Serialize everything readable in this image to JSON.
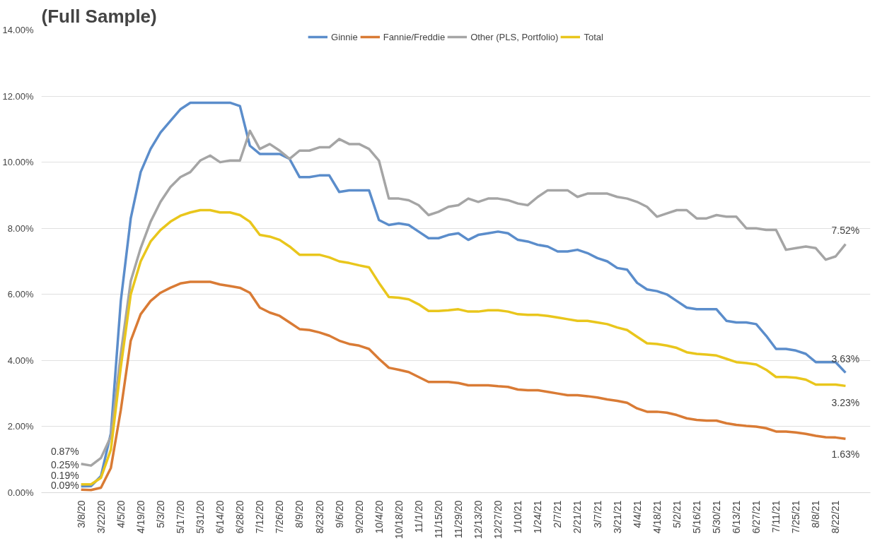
{
  "chart_data": {
    "type": "line",
    "title": "(Full Sample)",
    "categories": [
      "3/8/20",
      null,
      "3/22/20",
      null,
      "4/5/20",
      null,
      "4/19/20",
      null,
      "5/3/20",
      null,
      "5/17/20",
      null,
      "5/31/20",
      null,
      "6/14/20",
      null,
      "6/28/20",
      null,
      "7/12/20",
      null,
      "7/26/20",
      null,
      "8/9/20",
      null,
      "8/23/20",
      null,
      "9/6/20",
      null,
      "9/20/20",
      null,
      "10/4/20",
      null,
      "10/18/20",
      null,
      "11/1/20",
      null,
      "11/15/20",
      null,
      "11/29/20",
      null,
      "12/13/20",
      null,
      "12/27/20",
      null,
      "1/10/21",
      null,
      "1/24/21",
      null,
      "2/7/21",
      null,
      "2/21/21",
      null,
      "3/7/21",
      null,
      "3/21/21",
      null,
      "4/4/21",
      null,
      "4/18/21",
      null,
      "5/2/21",
      null,
      "5/16/21",
      null,
      "5/30/21",
      null,
      "6/13/21",
      null,
      "6/27/21",
      null,
      "7/11/21",
      null,
      "7/25/21",
      null,
      "8/8/21",
      null,
      "8/22/21",
      null
    ],
    "series": [
      {
        "name": "Ginnie",
        "color": "#5b8dcb",
        "values": [
          0.19,
          0.2,
          0.5,
          1.8,
          5.8,
          8.3,
          9.7,
          10.4,
          10.9,
          11.25,
          11.6,
          11.8,
          11.8,
          11.8,
          11.8,
          11.8,
          11.7,
          10.5,
          10.25,
          10.25,
          10.25,
          10.1,
          9.55,
          9.55,
          9.6,
          9.6,
          9.1,
          9.15,
          9.15,
          9.15,
          8.25,
          8.1,
          8.15,
          8.1,
          7.9,
          7.7,
          7.7,
          7.8,
          7.85,
          7.65,
          7.8,
          7.85,
          7.9,
          7.85,
          7.65,
          7.6,
          7.5,
          7.45,
          7.3,
          7.3,
          7.35,
          7.25,
          7.1,
          7.0,
          6.8,
          6.75,
          6.35,
          6.15,
          6.1,
          6.0,
          5.8,
          5.6,
          5.55,
          5.55,
          5.55,
          5.2,
          5.15,
          5.15,
          5.1,
          4.75,
          4.35,
          4.35,
          4.3,
          4.2,
          3.95,
          3.95,
          3.95,
          3.63
        ],
        "value_labels": [
          "0.19%",
          null,
          null,
          null,
          null,
          null,
          null,
          null,
          null,
          null,
          null,
          null,
          null,
          null,
          null,
          null,
          null,
          null,
          null,
          null,
          null,
          null,
          null,
          null,
          null,
          null,
          null,
          null,
          null,
          null,
          null,
          null,
          null,
          null,
          null,
          null,
          null,
          null,
          null,
          null,
          null,
          null,
          null,
          null,
          null,
          null,
          null,
          null,
          null,
          null,
          null,
          null,
          null,
          null,
          null,
          null,
          null,
          null,
          null,
          null,
          null,
          null,
          null,
          null,
          null,
          null,
          null,
          null,
          null,
          null,
          null,
          null,
          null,
          null,
          null,
          null,
          null,
          "3.63%"
        ]
      },
      {
        "name": "Fannie/Freddie",
        "color": "#d97b35",
        "values": [
          0.09,
          0.08,
          0.15,
          0.75,
          2.5,
          4.6,
          5.4,
          5.8,
          6.05,
          6.2,
          6.33,
          6.38,
          6.38,
          6.38,
          6.3,
          6.25,
          6.2,
          6.05,
          5.6,
          5.45,
          5.35,
          5.15,
          4.95,
          4.92,
          4.85,
          4.75,
          4.6,
          4.5,
          4.45,
          4.35,
          4.05,
          3.78,
          3.72,
          3.65,
          3.5,
          3.35,
          3.35,
          3.35,
          3.32,
          3.25,
          3.25,
          3.25,
          3.22,
          3.2,
          3.12,
          3.1,
          3.1,
          3.05,
          3.0,
          2.95,
          2.95,
          2.92,
          2.88,
          2.82,
          2.78,
          2.72,
          2.55,
          2.45,
          2.45,
          2.42,
          2.35,
          2.25,
          2.2,
          2.18,
          2.18,
          2.1,
          2.05,
          2.02,
          2.0,
          1.95,
          1.85,
          1.85,
          1.82,
          1.78,
          1.72,
          1.68,
          1.67,
          1.63
        ],
        "value_labels": [
          "0.09%",
          null,
          null,
          null,
          null,
          null,
          null,
          null,
          null,
          null,
          null,
          null,
          null,
          null,
          null,
          null,
          null,
          null,
          null,
          null,
          null,
          null,
          null,
          null,
          null,
          null,
          null,
          null,
          null,
          null,
          null,
          null,
          null,
          null,
          null,
          null,
          null,
          null,
          null,
          null,
          null,
          null,
          null,
          null,
          null,
          null,
          null,
          null,
          null,
          null,
          null,
          null,
          null,
          null,
          null,
          null,
          null,
          null,
          null,
          null,
          null,
          null,
          null,
          null,
          null,
          null,
          null,
          null,
          null,
          null,
          null,
          null,
          null,
          null,
          null,
          null,
          null,
          "1.63%"
        ]
      },
      {
        "name": "Other (PLS, Portfolio)",
        "color": "#a5a5a5",
        "values": [
          0.87,
          0.82,
          1.05,
          1.7,
          4.2,
          6.4,
          7.4,
          8.2,
          8.8,
          9.25,
          9.55,
          9.7,
          10.05,
          10.2,
          10.0,
          10.05,
          10.05,
          10.95,
          10.4,
          10.55,
          10.35,
          10.1,
          10.35,
          10.35,
          10.45,
          10.45,
          10.7,
          10.55,
          10.55,
          10.4,
          10.05,
          8.9,
          8.9,
          8.85,
          8.7,
          8.4,
          8.5,
          8.65,
          8.7,
          8.9,
          8.8,
          8.9,
          8.9,
          8.85,
          8.75,
          8.7,
          8.95,
          9.15,
          9.15,
          9.15,
          8.95,
          9.05,
          9.05,
          9.05,
          8.95,
          8.9,
          8.8,
          8.65,
          8.35,
          8.45,
          8.55,
          8.55,
          8.3,
          8.3,
          8.4,
          8.35,
          8.35,
          8.0,
          8.0,
          7.95,
          7.95,
          7.35,
          7.4,
          7.45,
          7.4,
          7.05,
          7.15,
          7.52
        ],
        "value_labels": [
          "0.87%",
          null,
          null,
          null,
          null,
          null,
          null,
          null,
          null,
          null,
          null,
          null,
          null,
          null,
          null,
          null,
          null,
          null,
          null,
          null,
          null,
          null,
          null,
          null,
          null,
          null,
          null,
          null,
          null,
          null,
          null,
          null,
          null,
          null,
          null,
          null,
          null,
          null,
          null,
          null,
          null,
          null,
          null,
          null,
          null,
          null,
          null,
          null,
          null,
          null,
          null,
          null,
          null,
          null,
          null,
          null,
          null,
          null,
          null,
          null,
          null,
          null,
          null,
          null,
          null,
          null,
          null,
          null,
          null,
          null,
          null,
          null,
          null,
          null,
          null,
          null,
          null,
          "7.52%"
        ]
      },
      {
        "name": "Total",
        "color": "#e9c61c",
        "values": [
          0.25,
          0.25,
          0.45,
          1.3,
          3.8,
          6.0,
          7.0,
          7.6,
          7.95,
          8.2,
          8.38,
          8.48,
          8.55,
          8.55,
          8.48,
          8.48,
          8.4,
          8.2,
          7.8,
          7.75,
          7.65,
          7.45,
          7.2,
          7.2,
          7.2,
          7.12,
          7.0,
          6.95,
          6.88,
          6.82,
          6.35,
          5.92,
          5.9,
          5.85,
          5.7,
          5.5,
          5.5,
          5.52,
          5.55,
          5.48,
          5.48,
          5.52,
          5.52,
          5.48,
          5.4,
          5.38,
          5.38,
          5.35,
          5.3,
          5.25,
          5.2,
          5.2,
          5.15,
          5.1,
          5.0,
          4.92,
          4.72,
          4.52,
          4.5,
          4.45,
          4.38,
          4.25,
          4.2,
          4.18,
          4.15,
          4.05,
          3.95,
          3.92,
          3.88,
          3.72,
          3.5,
          3.5,
          3.48,
          3.42,
          3.27,
          3.27,
          3.27,
          3.23
        ],
        "value_labels": [
          "0.25%",
          null,
          null,
          null,
          null,
          null,
          null,
          null,
          null,
          null,
          null,
          null,
          null,
          null,
          null,
          null,
          null,
          null,
          null,
          null,
          null,
          null,
          null,
          null,
          null,
          null,
          null,
          null,
          null,
          null,
          null,
          null,
          null,
          null,
          null,
          null,
          null,
          null,
          null,
          null,
          null,
          null,
          null,
          null,
          null,
          null,
          null,
          null,
          null,
          null,
          null,
          null,
          null,
          null,
          null,
          null,
          null,
          null,
          null,
          null,
          null,
          null,
          null,
          null,
          null,
          null,
          null,
          null,
          null,
          null,
          null,
          null,
          null,
          null,
          null,
          null,
          null,
          "3.23%"
        ]
      }
    ],
    "ylim": [
      0,
      14
    ],
    "yticks": [
      {
        "value": 0,
        "label": "0.00%"
      },
      {
        "value": 2,
        "label": "2.00%"
      },
      {
        "value": 4,
        "label": "4.00%"
      },
      {
        "value": 6,
        "label": "6.00%"
      },
      {
        "value": 8,
        "label": "8.00%"
      },
      {
        "value": 10,
        "label": "10.00%"
      },
      {
        "value": 12,
        "label": "12.00%"
      },
      {
        "value": 14,
        "label": "14.00%"
      }
    ],
    "grid": "y",
    "legend": "top",
    "marker": "none",
    "line_style": "solid"
  }
}
